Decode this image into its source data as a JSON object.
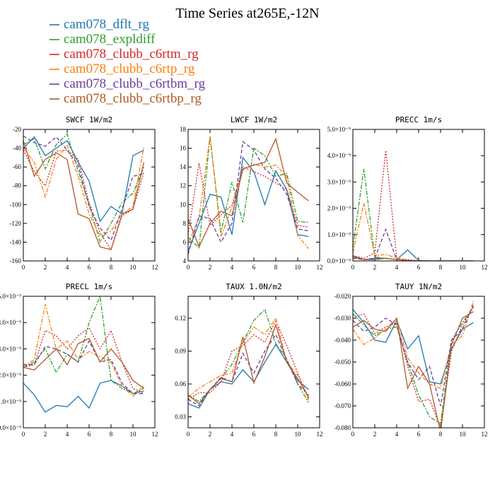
{
  "title": "Time Series at265E,-12N",
  "legend": [
    {
      "name": "cam078_dflt_rg",
      "color": "#1f77b4",
      "dash": ""
    },
    {
      "name": "cam078_expldiff",
      "color": "#2ca02c",
      "dash": "6,2,2,2"
    },
    {
      "name": "cam078_clubb_c6rtm_rg",
      "color": "#d62728",
      "dash": "2,2"
    },
    {
      "name": "cam078_clubb_c6rtp_rg",
      "color": "#ff7f0e",
      "dash": "6,2,2,2"
    },
    {
      "name": "cam078_clubb_c6rtbm_rg",
      "color": "#6a3d9a",
      "dash": "5,3"
    },
    {
      "name": "cam078_clubb_c6rtbp_rg",
      "color": "#b15928",
      "dash": ""
    }
  ],
  "chart_data": [
    {
      "type": "line",
      "title": "SWCF   1W/m2",
      "xlim": [
        0,
        12
      ],
      "ylim": [
        -160,
        -20
      ],
      "xticks": [
        0,
        2,
        4,
        6,
        8,
        10,
        12
      ],
      "yticks": [
        -160,
        -140,
        -120,
        -100,
        -80,
        -60,
        -40,
        -20
      ],
      "ytick_labels": [
        "-160",
        "-140",
        "-120",
        "-100",
        "-80",
        "-60",
        "-40",
        "-20"
      ],
      "x": [
        0,
        1,
        2,
        3,
        4,
        5,
        6,
        7,
        8,
        9,
        10,
        11
      ],
      "series": [
        {
          "name": "cam078_dflt_rg",
          "values": [
            -40,
            -28,
            -48,
            -40,
            -32,
            -55,
            -75,
            -118,
            -102,
            -110,
            -48,
            -42
          ]
        },
        {
          "name": "cam078_expldiff",
          "values": [
            -36,
            -30,
            -62,
            -36,
            -25,
            -64,
            -100,
            -140,
            -120,
            -98,
            -88,
            -60
          ]
        },
        {
          "name": "cam078_clubb_c6rtm_rg",
          "values": [
            -42,
            -65,
            -80,
            -43,
            -42,
            -52,
            -98,
            -130,
            -148,
            -112,
            -105,
            -65
          ]
        },
        {
          "name": "cam078_clubb_c6rtp_rg",
          "values": [
            -40,
            -55,
            -92,
            -52,
            -37,
            -70,
            -110,
            -133,
            -128,
            -110,
            -102,
            -38
          ]
        },
        {
          "name": "cam078_clubb_c6rtbm_rg",
          "values": [
            -27,
            -34,
            -38,
            -28,
            -42,
            -58,
            -102,
            -125,
            -138,
            -105,
            -70,
            -67
          ]
        },
        {
          "name": "cam078_clubb_c6rtbp_rg",
          "values": [
            -32,
            -70,
            -52,
            -45,
            -52,
            -110,
            -115,
            -145,
            -148,
            -110,
            -105,
            -55
          ]
        }
      ]
    },
    {
      "type": "line",
      "title": "LWCF   1W/m2",
      "xlim": [
        0,
        12
      ],
      "ylim": [
        4,
        18
      ],
      "xticks": [
        0,
        2,
        4,
        6,
        8,
        10,
        12
      ],
      "yticks": [
        4,
        6,
        8,
        10,
        12,
        14,
        16,
        18
      ],
      "ytick_labels": [
        "4",
        "6",
        "8",
        "10",
        "12",
        "14",
        "16",
        "18"
      ],
      "x": [
        0,
        1,
        2,
        3,
        4,
        5,
        6,
        7,
        8,
        9,
        10,
        11
      ],
      "series": [
        {
          "name": "cam078_dflt_rg",
          "values": [
            5.0,
            8.0,
            11.1,
            10.8,
            6.8,
            15.0,
            13.5,
            10.0,
            13.6,
            11.6,
            6.8,
            6.6
          ]
        },
        {
          "name": "cam078_expldiff",
          "values": [
            6.5,
            5.4,
            17.2,
            7.0,
            12.4,
            8.1,
            16.0,
            15.2,
            13.0,
            13.3,
            8.2,
            8.1
          ]
        },
        {
          "name": "cam078_clubb_c6rtm_rg",
          "values": [
            6.8,
            14.4,
            7.8,
            8.9,
            9.9,
            14.0,
            13.5,
            13.0,
            12.3,
            11.6,
            7.8,
            7.6
          ]
        },
        {
          "name": "cam078_clubb_c6rtp_rg",
          "values": [
            5.8,
            8.6,
            17.3,
            6.6,
            9.7,
            13.7,
            14.3,
            14.0,
            14.2,
            13.0,
            6.7,
            5.3
          ]
        },
        {
          "name": "cam078_clubb_c6rtbm_rg",
          "values": [
            4.7,
            8.8,
            8.5,
            6.0,
            8.0,
            16.7,
            15.8,
            13.8,
            12.8,
            11.1,
            7.4,
            7.2
          ]
        },
        {
          "name": "cam078_clubb_c6rtbp_rg",
          "values": [
            8.5,
            5.5,
            8.0,
            9.3,
            8.8,
            13.8,
            14.2,
            14.5,
            17.0,
            12.3,
            11.3,
            10.4
          ]
        }
      ]
    },
    {
      "type": "line",
      "title": "PRECC   1m/s",
      "xlim": [
        0,
        12
      ],
      "ylim": [
        0,
        5e-09
      ],
      "xticks": [
        0,
        2,
        4,
        6,
        8,
        10,
        12
      ],
      "yticks": [
        0,
        1e-09,
        2e-09,
        3e-09,
        4e-09,
        5e-09
      ],
      "ytick_labels": [
        "0.0×10⁻⁹",
        "1.0×10⁻⁹",
        "2.0×10⁻⁹",
        "3.0×10⁻⁹",
        "4.0×10⁻⁹",
        "5.0×10⁻⁹"
      ],
      "x": [
        0,
        1,
        2,
        3,
        4,
        5,
        6,
        7,
        8,
        9,
        10,
        11
      ],
      "series": [
        {
          "name": "cam078_dflt_rg",
          "values": [
            2e-10,
            5e-11,
            1e-10,
            1e-10,
            5e-11,
            4.2e-10,
            2e-11,
            0,
            0,
            0,
            0,
            0
          ]
        },
        {
          "name": "cam078_expldiff",
          "values": [
            5e-10,
            3.5e-09,
            1.5e-10,
            1e-10,
            5e-11,
            2e-11,
            0,
            0,
            0,
            0,
            0,
            0
          ]
        },
        {
          "name": "cam078_clubb_c6rtm_rg",
          "values": [
            2e-10,
            1e-10,
            3e-10,
            4.2e-09,
            1e-10,
            5e-11,
            0,
            0,
            0,
            0,
            0,
            0
          ]
        },
        {
          "name": "cam078_clubb_c6rtp_rg",
          "values": [
            3e-10,
            2.2e-09,
            2e-10,
            2.5e-10,
            1e-10,
            2e-11,
            0,
            0,
            0,
            0,
            0,
            0
          ]
        },
        {
          "name": "cam078_clubb_c6rtbm_rg",
          "values": [
            1e-10,
            5e-11,
            1e-10,
            1.2e-09,
            5e-11,
            2e-11,
            0,
            0,
            0,
            0,
            0,
            0
          ]
        },
        {
          "name": "cam078_clubb_c6rtbp_rg",
          "values": [
            1.5e-10,
            5e-11,
            5e-11,
            1e-10,
            5e-11,
            2e-11,
            0,
            0,
            0,
            0,
            0,
            0
          ]
        }
      ]
    },
    {
      "type": "line",
      "title": "PRECL   1m/s",
      "xlim": [
        0,
        12
      ],
      "ylim": [
        0,
        5e-09
      ],
      "xticks": [
        0,
        2,
        4,
        6,
        8,
        10,
        12
      ],
      "yticks": [
        0,
        1e-09,
        2e-09,
        3e-09,
        4e-09,
        5e-09
      ],
      "ytick_labels": [
        "0.0×10⁻⁹",
        "1.0×10⁻⁹",
        "2.0×10⁻⁹",
        "3.0×10⁻⁹",
        "4.0×10⁻⁹",
        "5.0×10⁻⁹"
      ],
      "x": [
        0,
        1,
        2,
        3,
        4,
        5,
        6,
        7,
        8,
        9,
        10,
        11
      ],
      "series": [
        {
          "name": "cam078_dflt_rg",
          "values": [
            1.7e-09,
            1.25e-09,
            6e-10,
            8.5e-10,
            8e-10,
            1.2e-09,
            7.5e-10,
            1.7e-09,
            1.8e-09,
            1.6e-09,
            1.3e-09,
            1.4e-09
          ]
        },
        {
          "name": "cam078_expldiff",
          "values": [
            2.3e-09,
            2.5e-09,
            3e-09,
            2.1e-09,
            2.8e-09,
            2.5e-09,
            4e-09,
            5e-09,
            1.8e-09,
            1.5e-09,
            1.3e-09,
            1.5e-09
          ]
        },
        {
          "name": "cam078_clubb_c6rtm_rg",
          "values": [
            2.3e-09,
            2.4e-09,
            3.7e-09,
            3.5e-09,
            3e-09,
            3.5e-09,
            3.8e-09,
            3e-09,
            3.7e-09,
            2.5e-09,
            1.5e-09,
            1.3e-09
          ]
        },
        {
          "name": "cam078_clubb_c6rtp_rg",
          "values": [
            2.3e-09,
            2.6e-09,
            4.7e-09,
            3e-09,
            3.3e-09,
            2.6e-09,
            2.9e-09,
            2.7e-09,
            2.5e-09,
            1.6e-09,
            1.2e-09,
            1.6e-09
          ]
        },
        {
          "name": "cam078_clubb_c6rtbm_rg",
          "values": [
            2.4e-09,
            2.4e-09,
            3.1e-09,
            3e-09,
            2.8e-09,
            2.5e-09,
            3.3e-09,
            2.5e-09,
            2.6e-09,
            1.7e-09,
            1.3e-09,
            1.3e-09
          ]
        },
        {
          "name": "cam078_clubb_c6rtbp_rg",
          "values": [
            2.3e-09,
            2.2e-09,
            2.6e-09,
            3e-09,
            2.4e-09,
            3.2e-09,
            3.4e-09,
            2.5e-09,
            3e-09,
            2.5e-09,
            1.8e-09,
            1.5e-09
          ]
        }
      ]
    },
    {
      "type": "line",
      "title": "TAUX   1.0N/m2",
      "xlim": [
        0,
        12
      ],
      "ylim": [
        0.02,
        0.14
      ],
      "xticks": [
        0,
        2,
        4,
        6,
        8,
        10,
        12
      ],
      "yticks": [
        0.03,
        0.06,
        0.09,
        0.12
      ],
      "ytick_labels": [
        "0.03",
        "0.06",
        "0.09",
        "0.12"
      ],
      "x": [
        0,
        1,
        2,
        3,
        4,
        5,
        6,
        7,
        8,
        9,
        10,
        11
      ],
      "series": [
        {
          "name": "cam078_dflt_rg",
          "values": [
            0.042,
            0.038,
            0.055,
            0.062,
            0.06,
            0.073,
            0.062,
            0.08,
            0.096,
            0.08,
            0.063,
            0.055
          ]
        },
        {
          "name": "cam078_expldiff",
          "values": [
            0.05,
            0.044,
            0.055,
            0.065,
            0.078,
            0.098,
            0.118,
            0.128,
            0.097,
            0.083,
            0.06,
            0.043
          ]
        },
        {
          "name": "cam078_clubb_c6rtm_rg",
          "values": [
            0.046,
            0.052,
            0.052,
            0.062,
            0.09,
            0.095,
            0.105,
            0.098,
            0.118,
            0.095,
            0.07,
            0.047
          ]
        },
        {
          "name": "cam078_clubb_c6rtp_rg",
          "values": [
            0.048,
            0.056,
            0.062,
            0.068,
            0.07,
            0.098,
            0.112,
            0.105,
            0.12,
            0.08,
            0.068,
            0.045
          ]
        },
        {
          "name": "cam078_clubb_c6rtbm_rg",
          "values": [
            0.046,
            0.04,
            0.055,
            0.066,
            0.062,
            0.088,
            0.07,
            0.09,
            0.105,
            0.082,
            0.06,
            0.05
          ]
        },
        {
          "name": "cam078_clubb_c6rtbp_rg",
          "values": [
            0.05,
            0.042,
            0.055,
            0.065,
            0.062,
            0.103,
            0.061,
            0.085,
            0.114,
            0.08,
            0.065,
            0.048
          ]
        }
      ]
    },
    {
      "type": "line",
      "title": "TAUY   1N/m2",
      "xlim": [
        0,
        12
      ],
      "ylim": [
        -0.08,
        -0.02
      ],
      "xticks": [
        0,
        2,
        4,
        6,
        8,
        10,
        12
      ],
      "yticks": [
        -0.08,
        -0.07,
        -0.06,
        -0.05,
        -0.04,
        -0.03,
        -0.02
      ],
      "ytick_labels": [
        "-0.080",
        "-0.070",
        "-0.060",
        "-0.050",
        "-0.040",
        "-0.030",
        "-0.020"
      ],
      "x": [
        0,
        1,
        2,
        3,
        4,
        5,
        6,
        7,
        8,
        9,
        10,
        11
      ],
      "series": [
        {
          "name": "cam078_dflt_rg",
          "values": [
            -0.026,
            -0.032,
            -0.04,
            -0.041,
            -0.031,
            -0.044,
            -0.038,
            -0.059,
            -0.06,
            -0.044,
            -0.035,
            -0.032
          ]
        },
        {
          "name": "cam078_expldiff",
          "values": [
            -0.028,
            -0.033,
            -0.038,
            -0.035,
            -0.034,
            -0.05,
            -0.065,
            -0.075,
            -0.078,
            -0.04,
            -0.032,
            -0.025
          ]
        },
        {
          "name": "cam078_clubb_c6rtm_rg",
          "values": [
            -0.03,
            -0.028,
            -0.037,
            -0.034,
            -0.032,
            -0.052,
            -0.068,
            -0.067,
            -0.08,
            -0.045,
            -0.033,
            -0.025
          ]
        },
        {
          "name": "cam078_clubb_c6rtp_rg",
          "values": [
            -0.035,
            -0.042,
            -0.039,
            -0.035,
            -0.03,
            -0.048,
            -0.055,
            -0.06,
            -0.062,
            -0.042,
            -0.038,
            -0.022
          ]
        },
        {
          "name": "cam078_clubb_c6rtbm_rg",
          "values": [
            -0.031,
            -0.036,
            -0.034,
            -0.03,
            -0.033,
            -0.05,
            -0.058,
            -0.052,
            -0.07,
            -0.04,
            -0.035,
            -0.024
          ]
        },
        {
          "name": "cam078_clubb_c6rtbp_rg",
          "values": [
            -0.034,
            -0.031,
            -0.035,
            -0.036,
            -0.03,
            -0.062,
            -0.052,
            -0.06,
            -0.082,
            -0.042,
            -0.03,
            -0.027
          ]
        }
      ]
    }
  ]
}
